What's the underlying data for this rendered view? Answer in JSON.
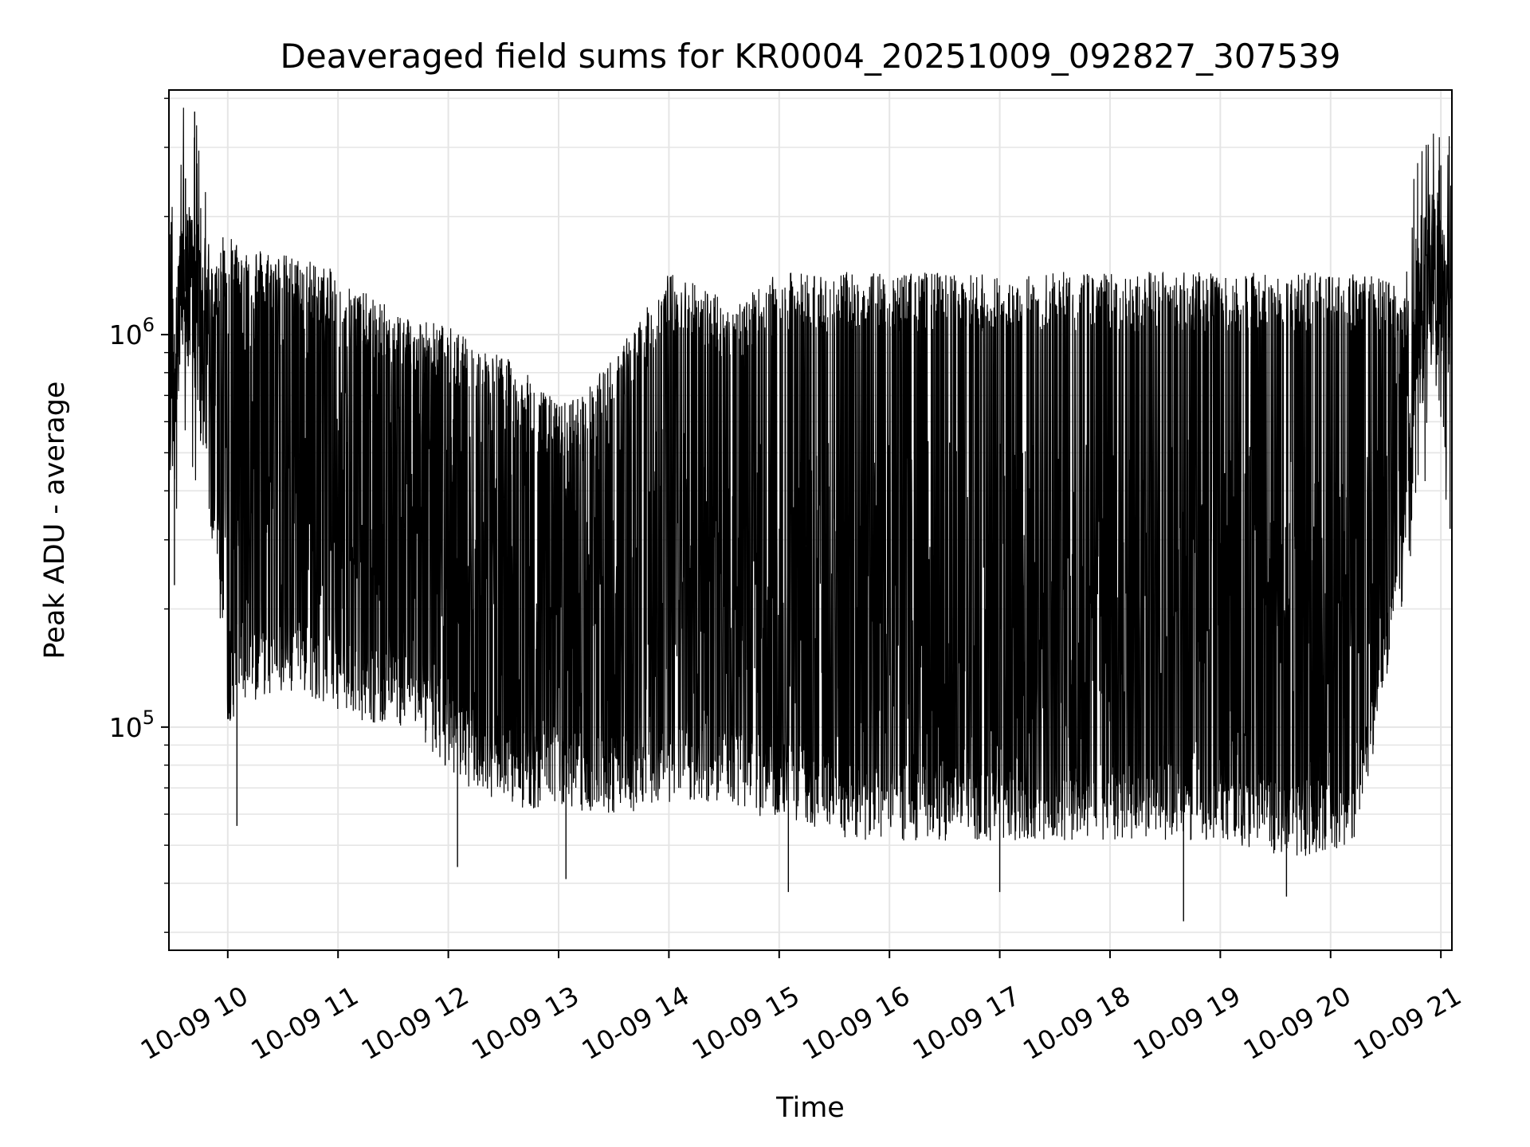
{
  "chart_data": {
    "type": "line",
    "title": "Deaveraged field sums for KR0004_20251009_092827_307539",
    "xlabel": "Time",
    "ylabel": "Peak ADU - average",
    "yscale": "log",
    "grid": true,
    "line_color": "#000000",
    "grid_color": "#e5e5e5",
    "xlim": [
      "2025-10-09 09:28",
      "2025-10-09 21:06"
    ],
    "ylim": [
      27000,
      4200000
    ],
    "x_ticks": [
      "2025-10-09 10:00",
      "2025-10-09 11:00",
      "2025-10-09 12:00",
      "2025-10-09 13:00",
      "2025-10-09 14:00",
      "2025-10-09 15:00",
      "2025-10-09 16:00",
      "2025-10-09 17:00",
      "2025-10-09 18:00",
      "2025-10-09 19:00",
      "2025-10-09 20:00",
      "2025-10-09 21:00"
    ],
    "x_tick_labels": [
      "10-09 10",
      "10-09 11",
      "10-09 12",
      "10-09 13",
      "10-09 14",
      "10-09 15",
      "10-09 16",
      "10-09 17",
      "10-09 18",
      "10-09 19",
      "10-09 20",
      "10-09 21"
    ],
    "y_ticks": [
      {
        "value": 100000,
        "base": "10",
        "exp": "5"
      },
      {
        "value": 1000000,
        "base": "10",
        "exp": "6"
      }
    ],
    "series": [
      {
        "x": [
          "2025-10-09 09:28",
          "2025-10-09 09:35",
          "2025-10-09 09:40",
          "2025-10-09 09:45",
          "2025-10-09 09:50",
          "2025-10-09 09:55",
          "2025-10-09 10:00",
          "2025-10-09 10:10",
          "2025-10-09 10:20",
          "2025-10-09 10:30",
          "2025-10-09 10:45",
          "2025-10-09 11:00",
          "2025-10-09 11:15",
          "2025-10-09 11:30",
          "2025-10-09 11:45",
          "2025-10-09 12:00",
          "2025-10-09 12:15",
          "2025-10-09 12:30",
          "2025-10-09 12:45",
          "2025-10-09 13:00",
          "2025-10-09 13:15",
          "2025-10-09 13:30",
          "2025-10-09 13:45",
          "2025-10-09 14:00",
          "2025-10-09 14:15",
          "2025-10-09 14:30",
          "2025-10-09 14:45",
          "2025-10-09 15:00",
          "2025-10-09 15:15",
          "2025-10-09 15:30",
          "2025-10-09 15:45",
          "2025-10-09 16:00",
          "2025-10-09 16:30",
          "2025-10-09 17:00",
          "2025-10-09 17:30",
          "2025-10-09 18:00",
          "2025-10-09 18:30",
          "2025-10-09 19:00",
          "2025-10-09 19:30",
          "2025-10-09 20:00",
          "2025-10-09 20:15",
          "2025-10-09 20:30",
          "2025-10-09 20:40",
          "2025-10-09 20:45",
          "2025-10-09 20:50",
          "2025-10-09 20:55",
          "2025-10-09 21:00",
          "2025-10-09 21:06"
        ],
        "upper": [
          1300000,
          1700000,
          1900000,
          1500000,
          1300000,
          1500000,
          1600000,
          1550000,
          1500000,
          1450000,
          1400000,
          1300000,
          1150000,
          1050000,
          1000000,
          950000,
          850000,
          800000,
          700000,
          600000,
          650000,
          800000,
          1000000,
          1300000,
          1250000,
          1100000,
          1150000,
          1300000,
          1300000,
          1300000,
          1300000,
          1300000,
          1300000,
          1280000,
          1300000,
          1300000,
          1300000,
          1300000,
          1300000,
          1300000,
          1300000,
          1250000,
          1150000,
          1200000,
          1800000,
          2200000,
          1800000,
          1300000
        ],
        "lower": [
          500000,
          900000,
          1000000,
          700000,
          400000,
          250000,
          120000,
          130000,
          140000,
          140000,
          140000,
          130000,
          120000,
          120000,
          110000,
          90000,
          80000,
          75000,
          72000,
          75000,
          70000,
          70000,
          72000,
          75000,
          75000,
          75000,
          70000,
          68000,
          65000,
          62000,
          60000,
          60000,
          60000,
          60000,
          60000,
          60000,
          60000,
          60000,
          55000,
          55000,
          60000,
          150000,
          300000,
          700000,
          900000,
          950000,
          1000000,
          900000
        ],
        "mid": [
          850000,
          1250000,
          1350000,
          1050000,
          800000,
          800000,
          500000,
          550000,
          550000,
          500000,
          450000,
          400000,
          350000,
          330000,
          300000,
          280000,
          250000,
          220000,
          200000,
          180000,
          170000,
          180000,
          200000,
          220000,
          210000,
          200000,
          190000,
          200000,
          190000,
          180000,
          180000,
          180000,
          180000,
          180000,
          180000,
          180000,
          180000,
          180000,
          170000,
          170000,
          180000,
          400000,
          650000,
          900000,
          1100000,
          1300000,
          1200000,
          1050000
        ],
        "spikes": [
          {
            "x": "2025-10-09 09:42",
            "y": 3700000
          },
          {
            "x": "2025-10-09 09:37",
            "y": 2500000
          },
          {
            "x": "2025-10-09 09:31",
            "y": 230000
          },
          {
            "x": "2025-10-09 10:05",
            "y": 56000
          },
          {
            "x": "2025-10-09 12:05",
            "y": 44000
          },
          {
            "x": "2025-10-09 13:04",
            "y": 41000
          },
          {
            "x": "2025-10-09 15:05",
            "y": 38000
          },
          {
            "x": "2025-10-09 17:00",
            "y": 38000
          },
          {
            "x": "2025-10-09 18:40",
            "y": 32000
          },
          {
            "x": "2025-10-09 19:36",
            "y": 37000
          },
          {
            "x": "2025-10-09 21:00",
            "y": 2700000
          },
          {
            "x": "2025-10-09 21:05",
            "y": 320000
          }
        ]
      }
    ]
  }
}
